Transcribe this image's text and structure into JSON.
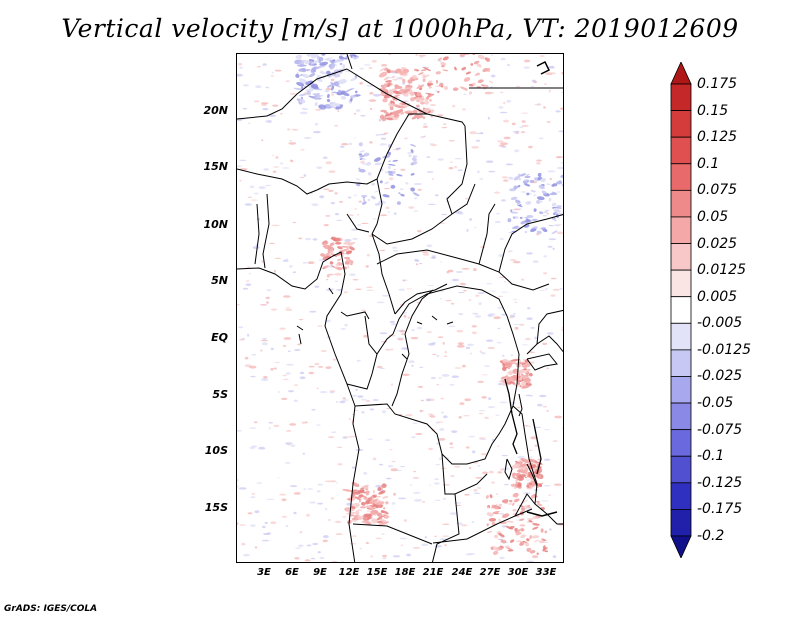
{
  "title": "Vertical velocity [m/s] at 1000hPa, VT: 2019012609",
  "footer": "GrADS: IGES/COLA",
  "lat_labels": [
    "20N",
    "15N",
    "10N",
    "5N",
    "EQ",
    "5S",
    "10S",
    "15S"
  ],
  "lon_labels": [
    "3E",
    "6E",
    "9E",
    "12E",
    "15E",
    "18E",
    "21E",
    "24E",
    "27E",
    "30E",
    "33E"
  ],
  "colorbar": {
    "labels": [
      "0.175",
      "0.15",
      "0.125",
      "0.1",
      "0.075",
      "0.05",
      "0.025",
      "0.0125",
      "0.005",
      "-0.005",
      "-0.0125",
      "-0.025",
      "-0.05",
      "-0.075",
      "-0.1",
      "-0.125",
      "-0.175",
      "-0.2"
    ],
    "colors": [
      "#b01818",
      "#c42828",
      "#d43b3b",
      "#e05050",
      "#e86a6a",
      "#ef8a8a",
      "#f4a8a8",
      "#f8c8c8",
      "#fbe4e4",
      "#ffffff",
      "#e2e2f8",
      "#c8c8f4",
      "#a8a8ee",
      "#8a8ae6",
      "#6a6ade",
      "#5050d0",
      "#3030c0",
      "#2020aa",
      "#10108a"
    ]
  }
}
